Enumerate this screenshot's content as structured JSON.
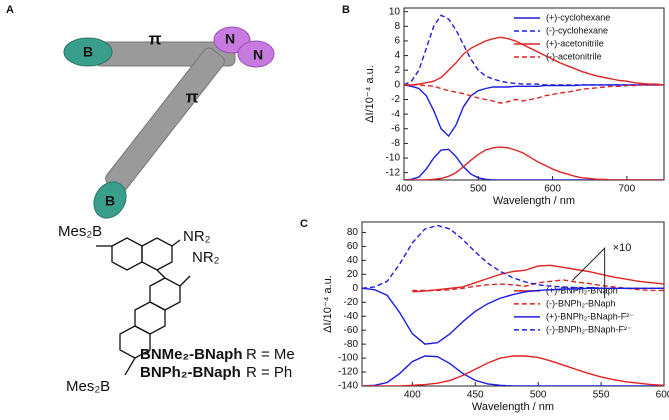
{
  "panel_a": {
    "label": "A",
    "cartoon": {
      "end_1": "B",
      "bridge_1": "π",
      "donor_1": "N",
      "donor_2": "N",
      "bridge_2": "π",
      "end_2": "B"
    },
    "structure": {
      "top_boron": "Mes₂B",
      "amine_1": "NR₂",
      "amine_2": "NR₂",
      "bottom_boron": "Mes₂B",
      "compound_1": "BNMe₂-BNaph",
      "r_1": "R = Me",
      "compound_2": "BNPh₂-BNaph",
      "r_2": "R = Ph"
    }
  },
  "chart_data": [
    {
      "type": "line",
      "panel_label": "B",
      "x_label": "Wavelength / nm",
      "y_label": "ΔI/10⁻⁴ a.u.",
      "xlim": [
        400,
        750
      ],
      "xticks": [
        400,
        500,
        600,
        700
      ],
      "ylim": [
        -13,
        10.5
      ],
      "yticks": [
        10,
        8,
        6,
        4,
        2,
        0,
        -2,
        -4,
        -6,
        -8,
        -10,
        -12
      ],
      "legend": "upper right",
      "x": [
        400,
        410,
        420,
        430,
        440,
        450,
        460,
        470,
        480,
        490,
        500,
        510,
        520,
        530,
        540,
        550,
        560,
        570,
        580,
        590,
        600,
        610,
        620,
        630,
        640,
        650,
        660,
        670,
        680,
        690,
        700,
        710,
        720,
        730,
        740,
        750
      ],
      "series": [
        {
          "name": "(+)-cyclohexane",
          "color": "#1c1ce0",
          "dashed": false,
          "values": [
            0,
            -0.2,
            -0.5,
            -1.5,
            -3.5,
            -6,
            -7,
            -5.5,
            -3,
            -1.5,
            -0.8,
            -0.5,
            -0.3,
            -0.3,
            -0.3,
            -0.2,
            -0.2,
            -0.2,
            -0.2,
            -0.1,
            -0.1,
            -0.1,
            -0.1,
            -0.1,
            0,
            0,
            0,
            0,
            0,
            0,
            0,
            0,
            0,
            0,
            0,
            0
          ]
        },
        {
          "name": "(-)-cyclohexane",
          "color": "#1c1ce0",
          "dashed": true,
          "values": [
            0,
            0.5,
            2,
            5,
            8,
            9.5,
            9,
            7.5,
            5.5,
            3.5,
            2,
            1.2,
            0.8,
            0.5,
            0.3,
            0.2,
            0.1,
            0.1,
            0.1,
            0,
            0,
            0,
            0,
            0,
            0,
            0,
            0,
            0,
            0,
            0,
            0,
            0,
            0,
            0,
            0,
            0
          ]
        },
        {
          "name": "(+)-acetonitrile",
          "color": "#e02424",
          "dashed": false,
          "values": [
            0,
            0,
            0.1,
            0.3,
            0.5,
            1,
            2,
            3,
            4.2,
            5,
            5.5,
            6,
            6.3,
            6.5,
            6.3,
            6,
            5.5,
            5,
            4.5,
            4,
            3.5,
            3,
            2.6,
            2.2,
            1.8,
            1.5,
            1.2,
            1,
            0.8,
            0.6,
            0.5,
            0.3,
            0.2,
            0.1,
            0.1,
            0
          ]
        },
        {
          "name": "(-)-acetonitrile",
          "color": "#e02424",
          "dashed": true,
          "values": [
            0,
            0,
            0,
            -0.1,
            -0.2,
            -0.5,
            -0.8,
            -1,
            -1.2,
            -1.5,
            -1.8,
            -2,
            -2.2,
            -2.5,
            -2.3,
            -2,
            -2.2,
            -2,
            -1.8,
            -1.5,
            -1.3,
            -1.1,
            -1,
            -0.8,
            -0.6,
            -0.5,
            -0.4,
            -0.3,
            -0.2,
            -0.2,
            -0.1,
            -0.1,
            0,
            0,
            0,
            0
          ]
        },
        {
          "color": "#1c1ce0",
          "dashed": false,
          "values": [
            -13,
            -12.9,
            -12.6,
            -11.5,
            -10,
            -8.9,
            -8.8,
            -9.8,
            -11.2,
            -12.2,
            -12.7,
            -12.9,
            -13,
            -13,
            -13,
            -13,
            -13,
            -13,
            -13,
            -13,
            -13,
            -13,
            -13,
            -13,
            -13,
            -13,
            -13,
            -13,
            -13,
            -13,
            -13,
            -13,
            -13,
            -13,
            -13,
            -13
          ]
        },
        {
          "color": "#e02424",
          "dashed": false,
          "values": [
            -13,
            -13,
            -13,
            -13,
            -12.9,
            -12.8,
            -12.5,
            -12,
            -11.2,
            -10.3,
            -9.5,
            -8.9,
            -8.6,
            -8.5,
            -8.6,
            -8.9,
            -9.3,
            -9.9,
            -10.5,
            -11,
            -11.5,
            -11.9,
            -12.2,
            -12.5,
            -12.7,
            -12.8,
            -12.9,
            -12.9,
            -13,
            -13,
            -13,
            -13,
            -13,
            -13,
            -13,
            -13
          ]
        }
      ]
    },
    {
      "type": "line",
      "panel_label": "C",
      "x_label": "Wavelength / nm",
      "y_label": "ΔI/10⁻⁴ a.u.",
      "xlim": [
        360,
        600
      ],
      "xticks": [
        400,
        450,
        500,
        550,
        600
      ],
      "ylim": [
        -140,
        95
      ],
      "yticks": [
        80,
        60,
        40,
        20,
        0,
        -20,
        -40,
        -60,
        -80,
        -100,
        -120,
        -140
      ],
      "legend": "right",
      "annotation": "×10",
      "x": [
        360,
        370,
        380,
        390,
        400,
        410,
        420,
        430,
        440,
        450,
        460,
        470,
        480,
        490,
        500,
        510,
        520,
        530,
        540,
        550,
        560,
        570,
        580,
        590,
        600
      ],
      "series": [
        {
          "name": "(+)-BNPh₂-BNaph",
          "color": "#e02424",
          "dashed": false,
          "values": [
            null,
            null,
            null,
            null,
            -5,
            -4,
            -2,
            0,
            2,
            8,
            14,
            20,
            24,
            26,
            32,
            33,
            30,
            27,
            24,
            20,
            16,
            13,
            10,
            8,
            6
          ]
        },
        {
          "name": "(-)-BNPh₂-BNaph",
          "color": "#e02424",
          "dashed": true,
          "values": [
            null,
            null,
            null,
            null,
            -3,
            -3,
            -3,
            -2,
            0,
            3,
            5,
            6,
            5,
            3,
            8,
            10,
            12,
            9,
            7,
            4,
            2,
            0,
            -2,
            -3,
            -3
          ]
        },
        {
          "name": "(+)-BNPh₂-BNaph-F²⁻",
          "color": "#1c1ce0",
          "dashed": false,
          "values": [
            0,
            -2,
            -10,
            -35,
            -65,
            -80,
            -78,
            -65,
            -48,
            -33,
            -22,
            -14,
            -9,
            -5,
            -3,
            -2,
            -1,
            -1,
            0,
            0,
            0,
            0,
            0,
            0,
            0
          ]
        },
        {
          "name": "(-)-BNPh₂-BNaph-F²⁻",
          "color": "#1c1ce0",
          "dashed": true,
          "values": [
            0,
            2,
            10,
            35,
            65,
            85,
            90,
            85,
            70,
            52,
            36,
            24,
            15,
            9,
            5,
            3,
            2,
            1,
            1,
            0,
            0,
            0,
            0,
            0,
            0
          ]
        },
        {
          "color": "#1c1ce0",
          "dashed": false,
          "values": [
            -140,
            -139,
            -135,
            -122,
            -105,
            -97,
            -98,
            -108,
            -122,
            -132,
            -137,
            -139,
            -140,
            -140,
            -140,
            -140,
            -140,
            -140,
            -140,
            -140,
            -140,
            -140,
            -140,
            -140,
            -140
          ]
        },
        {
          "color": "#e02424",
          "dashed": false,
          "values": [
            -140,
            -140,
            -140,
            -140,
            -139,
            -138,
            -136,
            -132,
            -125,
            -116,
            -107,
            -100,
            -97,
            -97,
            -99,
            -104,
            -110,
            -116,
            -122,
            -127,
            -131,
            -134,
            -136,
            -138,
            -139
          ]
        }
      ]
    }
  ]
}
